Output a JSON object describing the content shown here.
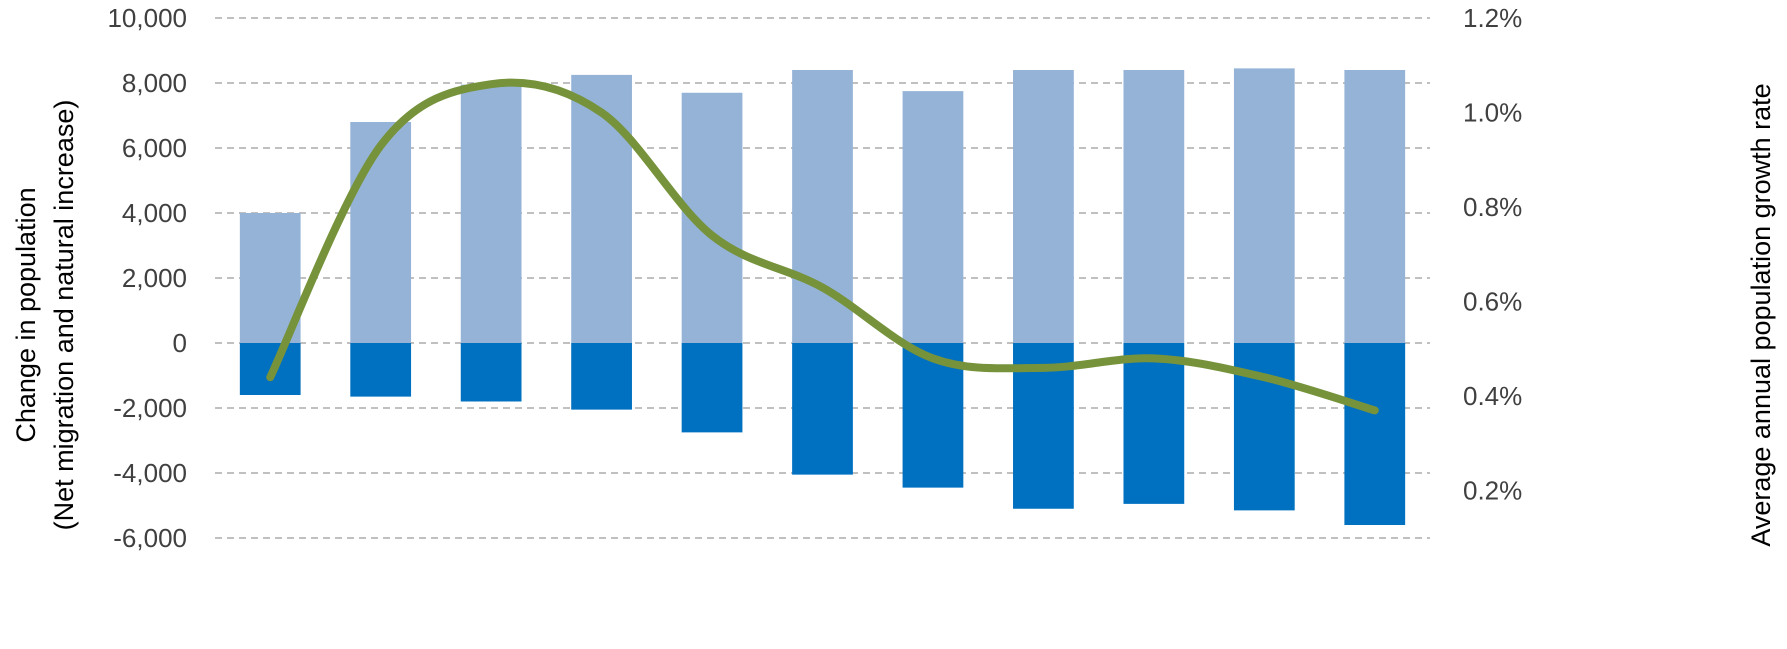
{
  "chart_data": {
    "type": "bar",
    "title": "",
    "categories": [
      "",
      "",
      "",
      "",
      "",
      "",
      "",
      "",
      "",
      "",
      ""
    ],
    "ylabel_left": [
      "Change in population",
      "(Net migration and natural increase)"
    ],
    "ylabel_right": "Average  annual population growth rate",
    "ylim_left": [
      -6000,
      10000
    ],
    "yticks_left": [
      {
        "value": 10000,
        "label": "10,000"
      },
      {
        "value": 8000,
        "label": "8,000"
      },
      {
        "value": 6000,
        "label": "6,000"
      },
      {
        "value": 4000,
        "label": "4,000"
      },
      {
        "value": 2000,
        "label": "2,000"
      },
      {
        "value": 0,
        "label": "0"
      },
      {
        "value": -2000,
        "label": "-2,000"
      },
      {
        "value": -4000,
        "label": "-4,000"
      },
      {
        "value": -6000,
        "label": "-6,000"
      }
    ],
    "ylim_right": [
      0.1,
      1.2
    ],
    "yticks_right": [
      {
        "value": 1.2,
        "label": "1.2%"
      },
      {
        "value": 1.0,
        "label": "1.0%"
      },
      {
        "value": 0.8,
        "label": "0.8%"
      },
      {
        "value": 0.6,
        "label": "0.6%"
      },
      {
        "value": 0.4,
        "label": "0.4%"
      },
      {
        "value": 0.2,
        "label": "0.2%"
      }
    ],
    "grid": true,
    "series": [
      {
        "type": "bar",
        "axis": "left",
        "color": "#95b3d7",
        "values": [
          4000,
          6800,
          7950,
          8250,
          7700,
          8400,
          7750,
          8400,
          8400,
          8450,
          8400
        ]
      },
      {
        "type": "bar",
        "axis": "left",
        "color": "#0070c0",
        "values": [
          -1600,
          -1650,
          -1800,
          -2050,
          -2750,
          -4050,
          -4450,
          -5100,
          -4950,
          -5150,
          -5600
        ]
      },
      {
        "type": "line",
        "axis": "right",
        "color": "#76933c",
        "smooth": true,
        "values": [
          0.44,
          0.93,
          1.06,
          1.0,
          0.74,
          0.63,
          0.48,
          0.46,
          0.48,
          0.44,
          0.37
        ]
      }
    ]
  }
}
